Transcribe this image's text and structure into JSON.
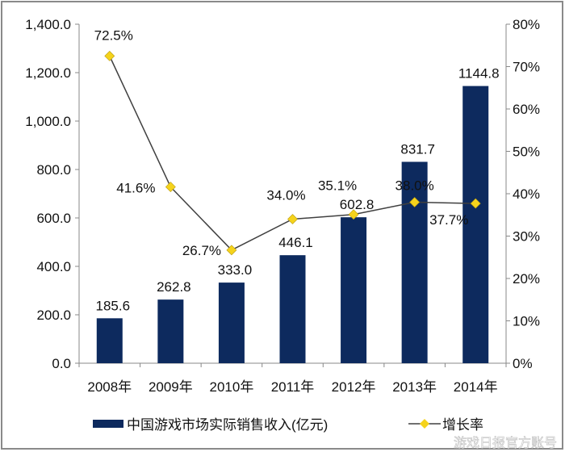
{
  "chart_data": {
    "type": "bar+line",
    "categories": [
      "2008年",
      "2009年",
      "2010年",
      "2011年",
      "2012年",
      "2013年",
      "2014年"
    ],
    "series": [
      {
        "name": "中国游戏市场实际销售收入(亿元)",
        "type": "bar",
        "axis": "left",
        "color": "#0d2a5e",
        "values": [
          185.6,
          262.8,
          333.0,
          446.1,
          602.8,
          831.7,
          1144.8
        ],
        "labels": [
          "185.6",
          "262.8",
          "333.0",
          "446.1",
          "602.8",
          "831.7",
          "1144.8"
        ]
      },
      {
        "name": "增长率",
        "type": "line",
        "axis": "right",
        "color": "#404040",
        "marker_color": "#f5d31c",
        "values": [
          72.5,
          41.6,
          26.7,
          34.0,
          35.1,
          38.0,
          37.7
        ],
        "labels": [
          "72.5%",
          "41.6%",
          "26.7%",
          "34.0%",
          "35.1%",
          "38.0%",
          "37.7%"
        ]
      }
    ],
    "left_axis": {
      "ylim": [
        0,
        1400
      ],
      "ticks": [
        "0.0",
        "200.0",
        "400.0",
        "600.0",
        "800.0",
        "1,000.0",
        "1,200.0",
        "1,400.0"
      ]
    },
    "right_axis": {
      "ylim": [
        0,
        80
      ],
      "ticks": [
        "0%",
        "10%",
        "20%",
        "30%",
        "40%",
        "50%",
        "60%",
        "70%",
        "80%"
      ]
    },
    "grid": false,
    "legend_position": "bottom"
  },
  "watermark": "游戏日报官方账号"
}
